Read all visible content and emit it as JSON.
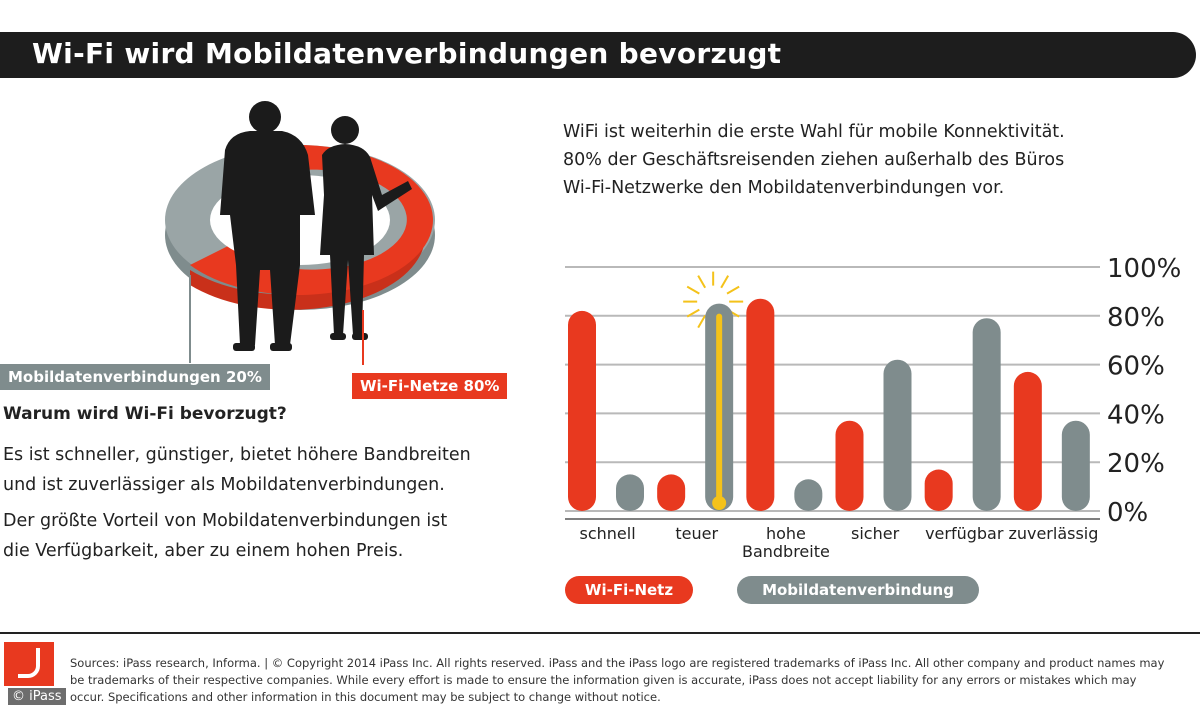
{
  "header": {
    "title": "Wi-Fi wird Mobildatenverbindungen bevorzugt"
  },
  "intro": {
    "lines": [
      "WiFi ist weiterhin die erste Wahl für mobile Konnektivität.",
      "80% der Geschäftsreisenden ziehen außerhalb des Büros",
      "Wi-Fi-Netzwerke den Mobildatenverbindungen vor."
    ]
  },
  "pie": {
    "label_mobile": "Mobildatenverbindungen 20%",
    "label_wifi": "Wi-Fi-Netze 80%",
    "mobile_share": 20,
    "wifi_share": 80
  },
  "why": {
    "heading": "Warum wird Wi-Fi bevorzugt?",
    "p1_lines": [
      "Es ist schneller, günstiger, bietet höhere Bandbreiten",
      "und ist zuverlässiger als Mobildatenverbindungen."
    ],
    "p2_lines": [
      "Der größte Vorteil von Mobildatenverbindungen ist",
      "die Verfügbarkeit, aber zu einem hohen Preis."
    ]
  },
  "chart_data": {
    "type": "bar",
    "categories": [
      "schnell",
      "teuer",
      "hohe\nBandbreite",
      "sicher",
      "verfügbar",
      "zuverlässig"
    ],
    "series": [
      {
        "name": "Wi-Fi-Netz",
        "values": [
          82,
          15,
          87,
          37,
          17,
          57
        ]
      },
      {
        "name": "Mobildatenverbindung",
        "values": [
          15,
          85,
          13,
          62,
          79,
          37
        ]
      }
    ],
    "y_ticks": [
      "0%",
      "20%",
      "40%",
      "60%",
      "80%",
      "100%"
    ],
    "ylim": [
      0,
      100
    ],
    "grid": true,
    "highlight_category": "teuer",
    "colors": {
      "wifi": "#e8391f",
      "mobile": "#7f8c8d",
      "highlight": "#f4c21a",
      "grid": "#b9b9b9"
    }
  },
  "legend": {
    "wifi": "Wi-Fi-Netz",
    "mobile": "Mobildatenverbindung"
  },
  "footer": {
    "sources_lines": [
      "Sources: iPass research, Informa.  |  © Copyright 2014 iPass Inc. All rights reserved. iPass and the iPass logo are registered trademarks of iPass Inc. All other company and product names may",
      "be trademarks of their respective companies. While every effort is made to ensure the information given is accurate, iPass does not accept liability for any errors or mistakes which may",
      "occur. Specifications and other information in this document may be subject to change without notice."
    ],
    "copyright": "© iPass"
  }
}
